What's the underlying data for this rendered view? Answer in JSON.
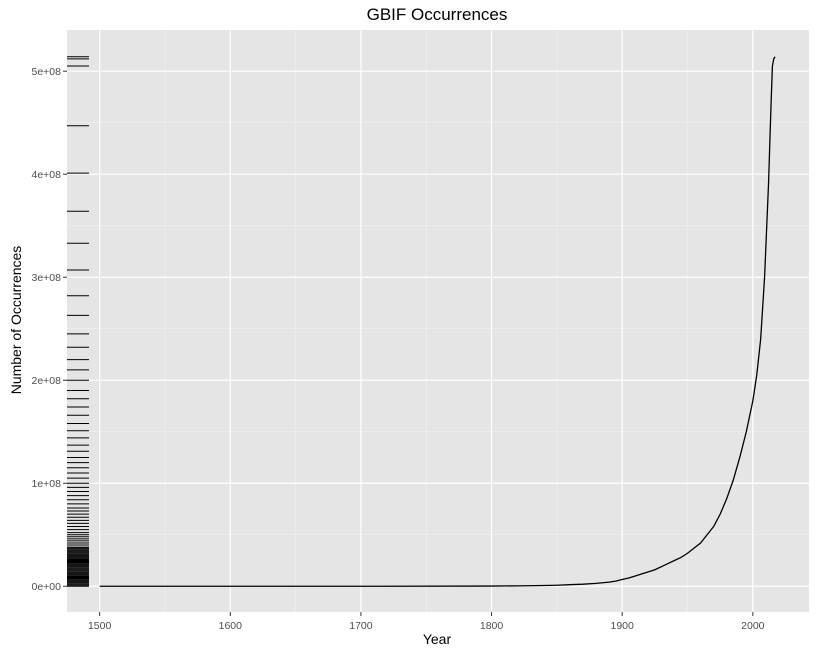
{
  "chart_data": {
    "type": "line",
    "title": "GBIF Occurrences",
    "xlabel": "Year",
    "ylabel": "Number of Occurrences",
    "xlim": [
      1475,
      2043
    ],
    "ylim": [
      -25000000,
      540000000
    ],
    "x_ticks": [
      1500,
      1600,
      1700,
      1800,
      1900,
      2000
    ],
    "y_ticks": [
      0,
      100000000,
      200000000,
      300000000,
      400000000,
      500000000
    ],
    "y_tick_labels": [
      "0e+00",
      "1e+08",
      "2e+08",
      "3e+08",
      "4e+08",
      "5e+08"
    ],
    "grid": true,
    "legend": "none",
    "series": [
      {
        "x": [
          1500,
          1600,
          1700,
          1800,
          1820,
          1840,
          1850,
          1860,
          1870,
          1880,
          1890,
          1895,
          1900,
          1905,
          1910,
          1915,
          1920,
          1925,
          1930,
          1935,
          1940,
          1945,
          1950,
          1955,
          1960,
          1965,
          1970,
          1975,
          1980,
          1985,
          1990,
          1995,
          2000,
          2003,
          2006,
          2009,
          2012,
          2014,
          2015,
          2016,
          2017
        ],
        "y": [
          0,
          0,
          0,
          200000,
          400000,
          700000,
          1000000,
          1500000,
          2000000,
          2800000,
          4000000,
          5000000,
          6500000,
          8000000,
          10000000,
          12000000,
          14000000,
          16000000,
          19000000,
          22000000,
          25000000,
          28000000,
          32000000,
          37000000,
          42000000,
          50000000,
          58000000,
          70000000,
          85000000,
          103000000,
          125000000,
          150000000,
          180000000,
          205000000,
          240000000,
          300000000,
          390000000,
          470000000,
          505000000,
          512000000,
          514000000
        ]
      }
    ],
    "rug_y": [
      0,
      1000000,
      2000000,
      3000000,
      4000000,
      5000000,
      6000000,
      7000000,
      8000000,
      9000000,
      10000000,
      11000000,
      12000000,
      13000000,
      14000000,
      15000000,
      16000000,
      17000000,
      18000000,
      19000000,
      20000000,
      21000000,
      22000000,
      23000000,
      24000000,
      25000000,
      26000000,
      27000000,
      28000000,
      29000000,
      30000000,
      31000000,
      32000000,
      33000000,
      34000000,
      35000000,
      36000000,
      37000000,
      38000000,
      40000000,
      42000000,
      44000000,
      46000000,
      48000000,
      50000000,
      52000000,
      55000000,
      58000000,
      61000000,
      64000000,
      67000000,
      70000000,
      73000000,
      76000000,
      80000000,
      84000000,
      88000000,
      92000000,
      96000000,
      100000000,
      105000000,
      110000000,
      115000000,
      120000000,
      125000000,
      131000000,
      137000000,
      144000000,
      151000000,
      158000000,
      166000000,
      174000000,
      182000000,
      190000000,
      200000000,
      210000000,
      220000000,
      232000000,
      245000000,
      263000000,
      282000000,
      307000000,
      333000000,
      364000000,
      401000000,
      447000000,
      505000000,
      512000000,
      514000000
    ]
  }
}
